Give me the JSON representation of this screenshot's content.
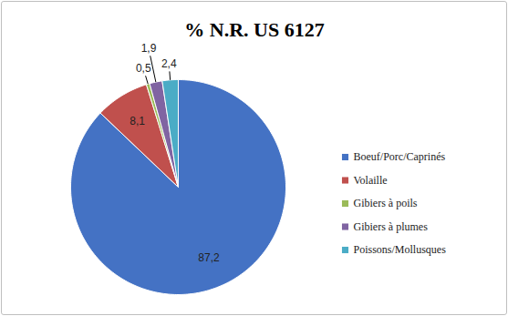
{
  "chart_data": {
    "type": "pie",
    "title": "% N.R. US 6127",
    "categories": [
      "Boeuf/Porc/Caprinés",
      "Volaille",
      "Gibiers à poils",
      "Gibiers à plumes",
      "Poissons/Mollusques"
    ],
    "values": [
      87.2,
      8.1,
      0.5,
      1.9,
      2.4
    ],
    "value_labels": [
      "87,2",
      "8,1",
      "0,5",
      "1,9",
      "2,4"
    ],
    "colors": [
      "#4472c4",
      "#c0504d",
      "#9bbb59",
      "#8064a2",
      "#4bacc6"
    ],
    "data_labels": true,
    "legend": "right",
    "tick_labels": false
  }
}
